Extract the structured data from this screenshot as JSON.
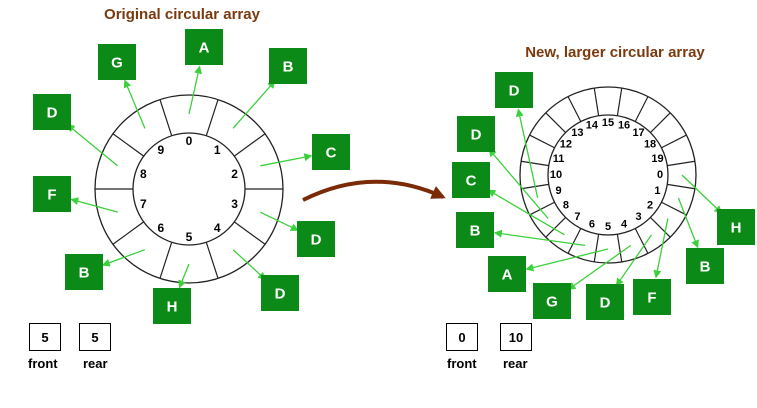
{
  "original": {
    "title": "Original circular array",
    "indices": [
      "0",
      "1",
      "2",
      "3",
      "4",
      "5",
      "6",
      "7",
      "8",
      "9"
    ],
    "elements": [
      {
        "label": "A",
        "slot": 0
      },
      {
        "label": "B",
        "slot": 1
      },
      {
        "label": "C",
        "slot": 2
      },
      {
        "label": "D",
        "slot": 3
      },
      {
        "label": "D",
        "slot": 4
      },
      {
        "label": "H",
        "slot": 5
      },
      {
        "label": "B",
        "slot": 6
      },
      {
        "label": "F",
        "slot": 7
      },
      {
        "label": "D",
        "slot": 8
      },
      {
        "label": "G",
        "slot": 9
      }
    ],
    "front": "5",
    "rear": "5",
    "front_label": "front",
    "rear_label": "rear"
  },
  "resized": {
    "title": "New, larger circular array",
    "indices": [
      "0",
      "1",
      "2",
      "3",
      "4",
      "5",
      "6",
      "7",
      "8",
      "9",
      "10",
      "11",
      "12",
      "13",
      "14",
      "15",
      "16",
      "17",
      "18",
      "19"
    ],
    "elements": [
      {
        "label": "H",
        "slot": 0
      },
      {
        "label": "B",
        "slot": 1
      },
      {
        "label": "F",
        "slot": 2
      },
      {
        "label": "D",
        "slot": 3
      },
      {
        "label": "G",
        "slot": 4
      },
      {
        "label": "A",
        "slot": 5
      },
      {
        "label": "B",
        "slot": 6
      },
      {
        "label": "C",
        "slot": 7
      },
      {
        "label": "D",
        "slot": 8
      },
      {
        "label": "D",
        "slot": 9
      }
    ],
    "front": "0",
    "rear": "10",
    "front_label": "front",
    "rear_label": "rear"
  },
  "colors": {
    "title": "#7a3a0e",
    "box_fill": "#0b8a17",
    "box_text": "#ffffff",
    "arrow": "#3ad13a",
    "transfer_arrow": "#7a2a05",
    "ring": "#222222"
  }
}
